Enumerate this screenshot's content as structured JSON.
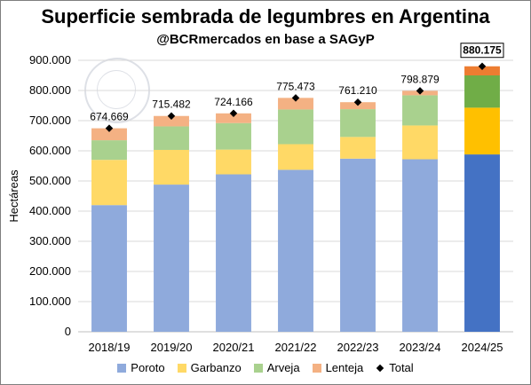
{
  "chart_data": {
    "type": "bar",
    "stacked": true,
    "title": "Superficie sembrada de legumbres en Argentina",
    "subtitle": "@BCRmercados en base a SAGyP",
    "ylabel": "Hectáreas",
    "xlabel": "",
    "ylim": [
      0,
      900000
    ],
    "yticks": [
      "0",
      "100.000",
      "200.000",
      "300.000",
      "400.000",
      "500.000",
      "600.000",
      "700.000",
      "800.000",
      "900.000"
    ],
    "categories": [
      "2018/19",
      "2019/20",
      "2020/21",
      "2021/22",
      "2022/23",
      "2023/24",
      "2024/25"
    ],
    "series": [
      {
        "name": "Poroto",
        "color": "#8faadc",
        "values": [
          420000,
          488000,
          522000,
          537000,
          574000,
          572000,
          588000
        ]
      },
      {
        "name": "Garbanzo",
        "color": "#ffd966",
        "values": [
          150000,
          115000,
          82000,
          85000,
          72000,
          112000,
          155000
        ]
      },
      {
        "name": "Arveja",
        "color": "#a9d18e",
        "values": [
          65000,
          78000,
          88000,
          115000,
          92000,
          100000,
          107000
        ]
      },
      {
        "name": "Lenteja",
        "color": "#f4b183",
        "values": [
          39669,
          34482,
          32166,
          38473,
          23210,
          14879,
          30175
        ]
      }
    ],
    "highlight_last": {
      "colors": {
        "Poroto": "#4472c4",
        "Garbanzo": "#ffc000",
        "Arveja": "#70ad47",
        "Lenteja": "#ed7d31"
      }
    },
    "totals": {
      "name": "Total",
      "values": [
        674669,
        715482,
        724166,
        775473,
        761210,
        798879,
        880175
      ],
      "labels": [
        "674.669",
        "715.482",
        "724.166",
        "775.473",
        "761.210",
        "798.879",
        "880.175"
      ]
    },
    "grid": true,
    "legend_position": "bottom"
  }
}
